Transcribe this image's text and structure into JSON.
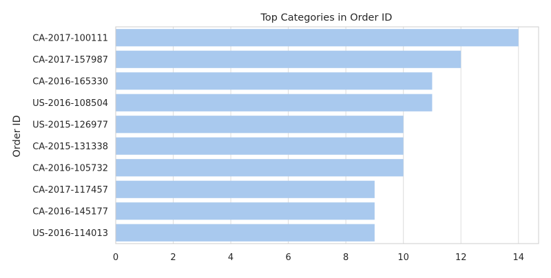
{
  "chart_data": {
    "type": "bar",
    "orientation": "horizontal",
    "title": "Top Categories in Order ID",
    "xlabel": "",
    "ylabel": "Order ID",
    "categories": [
      "CA-2017-100111",
      "CA-2017-157987",
      "CA-2016-165330",
      "US-2016-108504",
      "US-2015-126977",
      "CA-2015-131338",
      "CA-2016-105732",
      "CA-2017-117457",
      "CA-2016-145177",
      "US-2016-114013"
    ],
    "values": [
      14,
      12,
      11,
      11,
      10,
      10,
      10,
      9,
      9,
      9
    ],
    "xlim": [
      0,
      14.7
    ],
    "xticks": [
      0,
      2,
      4,
      6,
      8,
      10,
      12,
      14
    ],
    "grid": true,
    "legend": "none",
    "colors": {
      "bar": "#a9c9ee",
      "grid": "#dcdcdc",
      "frame": "#cccccc",
      "text": "#262626"
    }
  }
}
